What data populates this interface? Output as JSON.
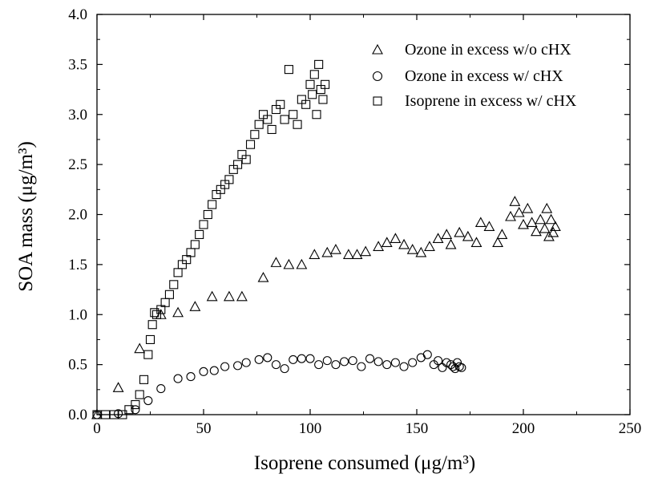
{
  "chart_data": {
    "type": "scatter",
    "title": "",
    "xlabel": "Isoprene consumed (μg/m³)",
    "ylabel": "SOA mass (μg/m³)",
    "xlim": [
      0,
      250
    ],
    "ylim": [
      0,
      4.0
    ],
    "x_ticks": [
      0,
      50,
      100,
      150,
      200,
      250
    ],
    "y_ticks": [
      0.0,
      0.5,
      1.0,
      1.5,
      2.0,
      2.5,
      3.0,
      3.5,
      4.0
    ],
    "x_tick_labels": [
      "0",
      "50",
      "100",
      "150",
      "200",
      "250"
    ],
    "y_tick_labels": [
      "0.0",
      "0.5",
      "1.0",
      "1.5",
      "2.0",
      "2.5",
      "3.0",
      "3.5",
      "4.0"
    ],
    "grid": false,
    "legend_position": "top-right",
    "series": [
      {
        "name": "Ozone in excess w/o cHX",
        "marker": "triangle",
        "x": [
          0,
          10,
          20,
          30,
          38,
          46,
          54,
          62,
          68,
          78,
          84,
          90,
          96,
          102,
          108,
          112,
          118,
          122,
          126,
          132,
          136,
          140,
          144,
          148,
          152,
          156,
          160,
          164,
          166,
          170,
          174,
          178,
          180,
          184,
          188,
          190,
          194,
          196,
          198,
          200,
          202,
          204,
          206,
          208,
          210,
          211,
          212,
          213,
          214,
          215
        ],
        "y": [
          0.0,
          0.27,
          0.66,
          1.0,
          1.02,
          1.08,
          1.18,
          1.18,
          1.18,
          1.37,
          1.52,
          1.5,
          1.5,
          1.6,
          1.62,
          1.65,
          1.6,
          1.6,
          1.63,
          1.68,
          1.72,
          1.76,
          1.7,
          1.65,
          1.62,
          1.68,
          1.76,
          1.8,
          1.7,
          1.82,
          1.78,
          1.72,
          1.92,
          1.88,
          1.72,
          1.8,
          1.98,
          2.13,
          2.02,
          1.9,
          2.06,
          1.92,
          1.83,
          1.95,
          1.86,
          2.06,
          1.78,
          1.95,
          1.82,
          1.88
        ]
      },
      {
        "name": "Ozone in excess w/ cHX",
        "marker": "circle",
        "x": [
          0,
          10,
          18,
          24,
          30,
          38,
          44,
          50,
          55,
          60,
          66,
          70,
          76,
          80,
          84,
          88,
          92,
          96,
          100,
          104,
          108,
          112,
          116,
          120,
          124,
          128,
          132,
          136,
          140,
          144,
          148,
          152,
          155,
          158,
          160,
          162,
          164,
          166,
          167,
          168,
          169,
          170,
          171
        ],
        "y": [
          0.0,
          0.01,
          0.05,
          0.14,
          0.26,
          0.36,
          0.38,
          0.43,
          0.44,
          0.48,
          0.49,
          0.52,
          0.55,
          0.57,
          0.5,
          0.46,
          0.55,
          0.56,
          0.56,
          0.5,
          0.54,
          0.5,
          0.53,
          0.54,
          0.48,
          0.56,
          0.53,
          0.5,
          0.52,
          0.48,
          0.52,
          0.57,
          0.6,
          0.5,
          0.54,
          0.47,
          0.52,
          0.5,
          0.48,
          0.46,
          0.52,
          0.48,
          0.47
        ]
      },
      {
        "name": "Isoprene in excess w/ cHX",
        "marker": "square",
        "x": [
          0,
          4,
          8,
          12,
          15,
          18,
          20,
          22,
          24,
          25,
          26,
          27,
          28,
          30,
          32,
          34,
          36,
          38,
          40,
          42,
          44,
          46,
          48,
          50,
          52,
          54,
          56,
          58,
          60,
          62,
          64,
          66,
          68,
          70,
          72,
          74,
          76,
          78,
          80,
          82,
          84,
          86,
          88,
          90,
          92,
          94,
          96,
          98,
          100,
          101,
          102,
          103,
          104,
          105,
          106,
          107
        ],
        "y": [
          0.0,
          0.0,
          0.0,
          0.0,
          0.05,
          0.1,
          0.2,
          0.35,
          0.6,
          0.75,
          0.9,
          1.02,
          1.0,
          1.05,
          1.12,
          1.2,
          1.3,
          1.42,
          1.5,
          1.55,
          1.62,
          1.7,
          1.8,
          1.9,
          2.0,
          2.1,
          2.2,
          2.25,
          2.3,
          2.35,
          2.45,
          2.5,
          2.6,
          2.55,
          2.7,
          2.8,
          2.9,
          3.0,
          2.95,
          2.85,
          3.05,
          3.1,
          2.95,
          3.45,
          3.0,
          2.9,
          3.15,
          3.1,
          3.3,
          3.2,
          3.4,
          3.0,
          3.5,
          3.25,
          3.15,
          3.3
        ]
      }
    ]
  }
}
